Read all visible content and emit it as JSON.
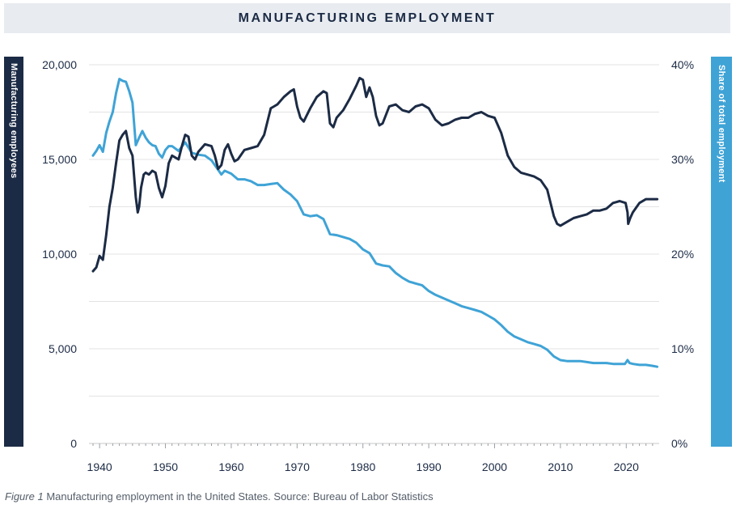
{
  "title": "MANUFACTURING EMPLOYMENT",
  "caption": {
    "figure_label": "Figure 1",
    "text": " Manufacturing employment in the United States. Source: Bureau of Labor Statistics"
  },
  "colors": {
    "employees": "#1c2b45",
    "share": "#3fa3d6",
    "grid": "#e3e3e3",
    "axis_text": "#1c2b45"
  },
  "chart_data": {
    "type": "line",
    "title": "MANUFACTURING EMPLOYMENT",
    "xlabel": "",
    "ylabel": "Manufacturing employees",
    "y2label": "Share of total employment",
    "xlim": [
      1939,
      2025
    ],
    "ylim": [
      0,
      20000
    ],
    "y2lim": [
      0,
      40
    ],
    "grid": true,
    "x_ticks": [
      1940,
      1950,
      1960,
      1970,
      1980,
      1990,
      2000,
      2010,
      2020
    ],
    "y_ticks": [
      {
        "value": 0,
        "label": "0"
      },
      {
        "value": 5000,
        "label": "5,000"
      },
      {
        "value": 10000,
        "label": "10,000"
      },
      {
        "value": 15000,
        "label": "15,000"
      },
      {
        "value": 20000,
        "label": "20,000"
      }
    ],
    "y2_ticks": [
      {
        "value": 0,
        "label": "0%"
      },
      {
        "value": 10,
        "label": "10%"
      },
      {
        "value": 20,
        "label": "20%"
      },
      {
        "value": 30,
        "label": "30%"
      },
      {
        "value": 40,
        "label": "40%"
      }
    ],
    "series": [
      {
        "name": "Manufacturing employees",
        "axis": "left",
        "x": [
          1939.0,
          1939.5,
          1940.0,
          1940.5,
          1941.0,
          1941.5,
          1942.0,
          1942.5,
          1943.0,
          1943.5,
          1944.0,
          1944.5,
          1945.0,
          1945.5,
          1945.8,
          1946.0,
          1946.3,
          1946.7,
          1947.0,
          1947.5,
          1948.0,
          1948.5,
          1949.0,
          1949.5,
          1950.0,
          1950.5,
          1951.0,
          1952.0,
          1952.5,
          1953.0,
          1953.5,
          1954.0,
          1954.5,
          1955.0,
          1956.0,
          1957.0,
          1957.5,
          1958.0,
          1958.5,
          1959.0,
          1959.5,
          1960.0,
          1960.5,
          1961.0,
          1962.0,
          1963.0,
          1964.0,
          1965.0,
          1966.0,
          1966.5,
          1967.0,
          1968.0,
          1969.0,
          1969.5,
          1970.0,
          1970.5,
          1971.0,
          1972.0,
          1973.0,
          1974.0,
          1974.5,
          1975.0,
          1975.5,
          1976.0,
          1977.0,
          1978.0,
          1979.0,
          1979.5,
          1980.0,
          1980.5,
          1981.0,
          1981.5,
          1982.0,
          1982.5,
          1983.0,
          1984.0,
          1985.0,
          1986.0,
          1987.0,
          1988.0,
          1989.0,
          1990.0,
          1991.0,
          1992.0,
          1993.0,
          1994.0,
          1995.0,
          1996.0,
          1997.0,
          1998.0,
          1999.0,
          2000.0,
          2001.0,
          2002.0,
          2003.0,
          2004.0,
          2005.0,
          2006.0,
          2007.0,
          2008.0,
          2009.0,
          2009.5,
          2010.0,
          2011.0,
          2012.0,
          2013.0,
          2014.0,
          2015.0,
          2016.0,
          2017.0,
          2018.0,
          2019.0,
          2019.9,
          2020.2,
          2020.3,
          2020.6,
          2021.0,
          2022.0,
          2023.0,
          2024.0,
          2024.7
        ],
        "values": [
          9100,
          9300,
          9900,
          9700,
          11000,
          12500,
          13500,
          14800,
          16000,
          16300,
          16500,
          15600,
          15200,
          13000,
          12200,
          12500,
          13500,
          14200,
          14300,
          14200,
          14400,
          14300,
          13500,
          13000,
          13600,
          14800,
          15200,
          15000,
          15700,
          16300,
          16200,
          15200,
          15000,
          15400,
          15800,
          15700,
          15200,
          14500,
          14700,
          15500,
          15800,
          15300,
          14900,
          15000,
          15500,
          15600,
          15700,
          16300,
          17700,
          17800,
          17900,
          18300,
          18600,
          18700,
          17800,
          17200,
          17000,
          17700,
          18300,
          18600,
          18500,
          16900,
          16700,
          17200,
          17600,
          18200,
          18900,
          19300,
          19200,
          18300,
          18800,
          18300,
          17300,
          16800,
          16900,
          17800,
          17900,
          17600,
          17500,
          17800,
          17900,
          17700,
          17100,
          16800,
          16900,
          17100,
          17200,
          17200,
          17400,
          17500,
          17300,
          17200,
          16400,
          15200,
          14600,
          14300,
          14200,
          14100,
          13900,
          13400,
          12000,
          11600,
          11500,
          11700,
          11900,
          12000,
          12100,
          12300,
          12300,
          12400,
          12700,
          12800,
          12700,
          12200,
          11600,
          11900,
          12200,
          12700,
          12900,
          12900,
          12900
        ]
      },
      {
        "name": "Share of total employment",
        "axis": "right",
        "x": [
          1939.0,
          1939.5,
          1940.0,
          1940.5,
          1941.0,
          1941.5,
          1942.0,
          1942.5,
          1943.0,
          1943.5,
          1944.0,
          1944.5,
          1945.0,
          1945.5,
          1946.0,
          1946.5,
          1947.0,
          1947.5,
          1948.0,
          1948.5,
          1949.0,
          1949.5,
          1950.0,
          1950.5,
          1951.0,
          1952.0,
          1953.0,
          1954.0,
          1955.0,
          1956.0,
          1957.0,
          1958.0,
          1958.5,
          1959.0,
          1960.0,
          1961.0,
          1962.0,
          1963.0,
          1964.0,
          1965.0,
          1966.0,
          1967.0,
          1968.0,
          1969.0,
          1970.0,
          1971.0,
          1972.0,
          1973.0,
          1974.0,
          1975.0,
          1976.0,
          1977.0,
          1978.0,
          1979.0,
          1980.0,
          1981.0,
          1982.0,
          1983.0,
          1984.0,
          1985.0,
          1986.0,
          1987.0,
          1988.0,
          1989.0,
          1990.0,
          1991.0,
          1992.0,
          1993.0,
          1994.0,
          1995.0,
          1996.0,
          1997.0,
          1998.0,
          1999.0,
          2000.0,
          2001.0,
          2002.0,
          2003.0,
          2004.0,
          2005.0,
          2006.0,
          2007.0,
          2008.0,
          2009.0,
          2010.0,
          2011.0,
          2012.0,
          2013.0,
          2014.0,
          2015.0,
          2016.0,
          2017.0,
          2018.0,
          2019.0,
          2019.8,
          2020.2,
          2020.5,
          2021.0,
          2022.0,
          2023.0,
          2024.0,
          2024.7
        ],
        "values": [
          30.4,
          30.9,
          31.5,
          30.8,
          32.8,
          34.0,
          35.0,
          37.0,
          38.5,
          38.3,
          38.2,
          37.2,
          36.0,
          31.5,
          32.3,
          33.0,
          32.3,
          31.8,
          31.5,
          31.4,
          30.6,
          30.2,
          31.0,
          31.4,
          31.4,
          30.9,
          31.8,
          30.7,
          30.5,
          30.4,
          29.9,
          28.9,
          28.4,
          28.8,
          28.5,
          27.9,
          27.9,
          27.7,
          27.3,
          27.3,
          27.4,
          27.5,
          26.8,
          26.3,
          25.6,
          24.2,
          24.0,
          24.1,
          23.7,
          22.1,
          22.0,
          21.8,
          21.6,
          21.2,
          20.5,
          20.1,
          19.0,
          18.8,
          18.7,
          18.0,
          17.5,
          17.1,
          16.9,
          16.7,
          16.1,
          15.7,
          15.4,
          15.1,
          14.8,
          14.5,
          14.3,
          14.1,
          13.9,
          13.5,
          13.1,
          12.5,
          11.8,
          11.3,
          11.0,
          10.7,
          10.5,
          10.3,
          9.9,
          9.2,
          8.8,
          8.7,
          8.7,
          8.7,
          8.6,
          8.5,
          8.5,
          8.5,
          8.4,
          8.4,
          8.4,
          8.8,
          8.5,
          8.4,
          8.3,
          8.3,
          8.2,
          8.1
        ]
      }
    ]
  }
}
